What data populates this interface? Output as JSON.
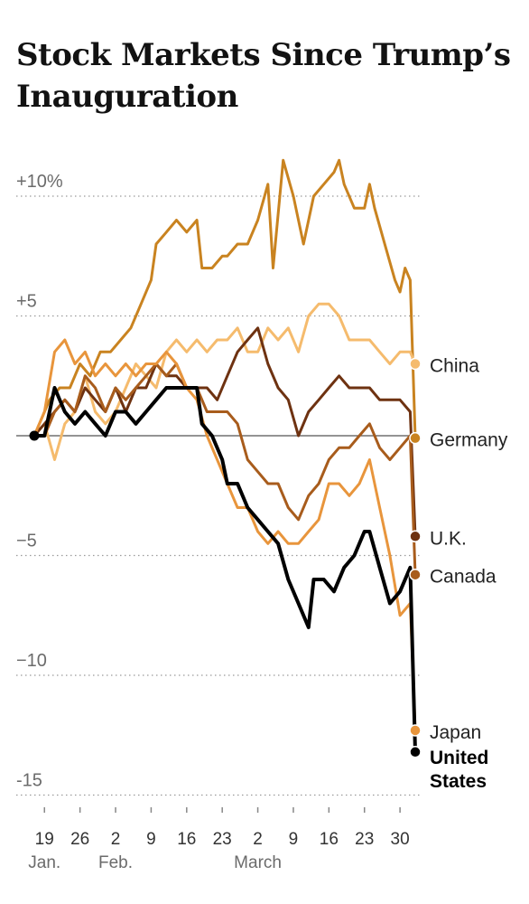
{
  "title": "Stock Markets Since Trump’s Inauguration",
  "chart_data": {
    "type": "line",
    "ylim": [
      -15.5,
      12
    ],
    "yticks": [
      {
        "value": 10,
        "label": "+10%"
      },
      {
        "value": 5,
        "label": "+5"
      },
      {
        "value": -5,
        "label": "−5"
      },
      {
        "value": -10,
        "label": "−10"
      },
      {
        "value": -15,
        "label": "-15"
      }
    ],
    "baseline": 0,
    "grid": "dotted horizontal",
    "x_start": "Jan. 17",
    "xticks": [
      {
        "day": 2,
        "label": "19"
      },
      {
        "day": 9,
        "label": "26"
      },
      {
        "day": 16,
        "label": "2"
      },
      {
        "day": 23,
        "label": "9"
      },
      {
        "day": 30,
        "label": "16"
      },
      {
        "day": 37,
        "label": "23"
      },
      {
        "day": 44,
        "label": "2"
      },
      {
        "day": 51,
        "label": "9"
      },
      {
        "day": 58,
        "label": "16"
      },
      {
        "day": 65,
        "label": "23"
      },
      {
        "day": 72,
        "label": "30"
      }
    ],
    "month_labels": [
      {
        "day": 2,
        "label": "Jan."
      },
      {
        "day": 16,
        "label": "Feb."
      },
      {
        "day": 44,
        "label": "March"
      }
    ],
    "x_domain": [
      -1,
      77
    ],
    "series": [
      {
        "name": "Germany",
        "color": "#c98320",
        "label_bold": false,
        "points": [
          [
            0,
            0
          ],
          [
            3,
            1.5
          ],
          [
            5,
            2
          ],
          [
            7,
            2
          ],
          [
            9,
            3
          ],
          [
            11,
            2.5
          ],
          [
            13,
            3.5
          ],
          [
            15,
            3.5
          ],
          [
            17,
            4
          ],
          [
            19,
            4.5
          ],
          [
            21,
            5.5
          ],
          [
            23,
            6.5
          ],
          [
            24,
            8
          ],
          [
            26,
            8.5
          ],
          [
            28,
            9
          ],
          [
            30,
            8.5
          ],
          [
            32,
            9
          ],
          [
            33,
            7
          ],
          [
            35,
            7
          ],
          [
            37,
            7.5
          ],
          [
            38,
            7.5
          ],
          [
            40,
            8
          ],
          [
            42,
            8
          ],
          [
            44,
            9
          ],
          [
            46,
            10.5
          ],
          [
            47,
            7
          ],
          [
            49,
            11.5
          ],
          [
            51,
            10
          ],
          [
            53,
            8
          ],
          [
            55,
            10
          ],
          [
            57,
            10.5
          ],
          [
            59,
            11
          ],
          [
            60,
            11.5
          ],
          [
            61,
            10.5
          ],
          [
            63,
            9.5
          ],
          [
            65,
            9.5
          ],
          [
            66,
            10.5
          ],
          [
            67,
            9.5
          ],
          [
            69,
            8
          ],
          [
            71,
            6.5
          ],
          [
            72,
            6
          ],
          [
            73,
            7
          ],
          [
            74,
            6.5
          ],
          [
            75,
            -0.1
          ]
        ]
      },
      {
        "name": "China",
        "color": "#f5bb6d",
        "label_bold": false,
        "points": [
          [
            0,
            0
          ],
          [
            2,
            0.5
          ],
          [
            4,
            -1
          ],
          [
            6,
            0.5
          ],
          [
            8,
            1
          ],
          [
            10,
            2.5
          ],
          [
            12,
            1
          ],
          [
            14,
            0.5
          ],
          [
            16,
            1
          ],
          [
            18,
            2
          ],
          [
            20,
            3
          ],
          [
            22,
            2.5
          ],
          [
            24,
            2
          ],
          [
            26,
            3.5
          ],
          [
            28,
            4
          ],
          [
            30,
            3.5
          ],
          [
            32,
            4
          ],
          [
            34,
            3.5
          ],
          [
            36,
            4
          ],
          [
            38,
            4
          ],
          [
            40,
            4.5
          ],
          [
            42,
            3.5
          ],
          [
            44,
            3.5
          ],
          [
            46,
            4.5
          ],
          [
            48,
            4
          ],
          [
            50,
            4.5
          ],
          [
            52,
            3.5
          ],
          [
            54,
            5
          ],
          [
            56,
            5.5
          ],
          [
            58,
            5.5
          ],
          [
            60,
            5
          ],
          [
            62,
            4
          ],
          [
            64,
            4
          ],
          [
            66,
            4
          ],
          [
            68,
            3.5
          ],
          [
            70,
            3
          ],
          [
            72,
            3.5
          ],
          [
            74,
            3.5
          ],
          [
            75,
            3
          ]
        ]
      },
      {
        "name": "U.K.",
        "color": "#6e3211",
        "label_bold": false,
        "points": [
          [
            0,
            0
          ],
          [
            2,
            0.5
          ],
          [
            4,
            1
          ],
          [
            6,
            1.5
          ],
          [
            8,
            1
          ],
          [
            10,
            2
          ],
          [
            12,
            1.5
          ],
          [
            14,
            1
          ],
          [
            16,
            2
          ],
          [
            18,
            1
          ],
          [
            20,
            2
          ],
          [
            22,
            2
          ],
          [
            24,
            3
          ],
          [
            26,
            2.5
          ],
          [
            28,
            2.5
          ],
          [
            30,
            2
          ],
          [
            32,
            2
          ],
          [
            34,
            2
          ],
          [
            36,
            1.5
          ],
          [
            38,
            2.5
          ],
          [
            40,
            3.5
          ],
          [
            42,
            4
          ],
          [
            44,
            4.5
          ],
          [
            46,
            3
          ],
          [
            48,
            2
          ],
          [
            50,
            1.5
          ],
          [
            52,
            0
          ],
          [
            54,
            1
          ],
          [
            56,
            1.5
          ],
          [
            58,
            2
          ],
          [
            60,
            2.5
          ],
          [
            62,
            2
          ],
          [
            64,
            2
          ],
          [
            66,
            2
          ],
          [
            68,
            1.5
          ],
          [
            70,
            1.5
          ],
          [
            72,
            1.5
          ],
          [
            74,
            1
          ],
          [
            75,
            -4.2
          ]
        ]
      },
      {
        "name": "Canada",
        "color": "#a85c1c",
        "label_bold": false,
        "points": [
          [
            0,
            0
          ],
          [
            2,
            0
          ],
          [
            4,
            1
          ],
          [
            6,
            1.5
          ],
          [
            8,
            1
          ],
          [
            10,
            2.5
          ],
          [
            12,
            2
          ],
          [
            14,
            1
          ],
          [
            16,
            2
          ],
          [
            18,
            1.5
          ],
          [
            20,
            2
          ],
          [
            22,
            2.5
          ],
          [
            24,
            3
          ],
          [
            26,
            2.5
          ],
          [
            28,
            3
          ],
          [
            30,
            2
          ],
          [
            32,
            2
          ],
          [
            34,
            1
          ],
          [
            36,
            1
          ],
          [
            38,
            1
          ],
          [
            40,
            0.5
          ],
          [
            42,
            -1
          ],
          [
            44,
            -1.5
          ],
          [
            46,
            -2
          ],
          [
            48,
            -2
          ],
          [
            50,
            -3
          ],
          [
            52,
            -3.5
          ],
          [
            54,
            -2.5
          ],
          [
            56,
            -2
          ],
          [
            58,
            -1
          ],
          [
            60,
            -0.5
          ],
          [
            62,
            -0.5
          ],
          [
            64,
            0
          ],
          [
            66,
            0.5
          ],
          [
            68,
            -0.5
          ],
          [
            70,
            -1
          ],
          [
            72,
            -0.5
          ],
          [
            74,
            0
          ],
          [
            75,
            -5.8
          ]
        ]
      },
      {
        "name": "Japan",
        "color": "#e8953c",
        "label_bold": false,
        "points": [
          [
            0,
            0
          ],
          [
            2,
            1
          ],
          [
            4,
            3.5
          ],
          [
            6,
            4
          ],
          [
            8,
            3
          ],
          [
            10,
            3.5
          ],
          [
            12,
            2.5
          ],
          [
            14,
            3
          ],
          [
            16,
            2.5
          ],
          [
            18,
            3
          ],
          [
            20,
            2.5
          ],
          [
            22,
            3
          ],
          [
            24,
            3
          ],
          [
            26,
            3.5
          ],
          [
            28,
            3
          ],
          [
            30,
            2
          ],
          [
            32,
            1.5
          ],
          [
            34,
            0
          ],
          [
            36,
            -1
          ],
          [
            38,
            -2
          ],
          [
            40,
            -3
          ],
          [
            42,
            -3
          ],
          [
            44,
            -4
          ],
          [
            46,
            -4.5
          ],
          [
            48,
            -4
          ],
          [
            50,
            -4.5
          ],
          [
            52,
            -4.5
          ],
          [
            54,
            -4
          ],
          [
            56,
            -3.5
          ],
          [
            58,
            -2
          ],
          [
            60,
            -2
          ],
          [
            62,
            -2.5
          ],
          [
            64,
            -2
          ],
          [
            66,
            -1
          ],
          [
            68,
            -3
          ],
          [
            70,
            -5
          ],
          [
            72,
            -7.5
          ],
          [
            74,
            -7
          ],
          [
            75,
            -12.3
          ]
        ]
      },
      {
        "name": "United States",
        "color": "#000000",
        "label_bold": true,
        "points": [
          [
            0,
            0
          ],
          [
            2,
            0
          ],
          [
            4,
            2
          ],
          [
            6,
            1
          ],
          [
            8,
            0.5
          ],
          [
            10,
            1
          ],
          [
            12,
            0.5
          ],
          [
            14,
            0
          ],
          [
            16,
            1
          ],
          [
            18,
            1
          ],
          [
            20,
            0.5
          ],
          [
            22,
            1
          ],
          [
            24,
            1.5
          ],
          [
            26,
            2
          ],
          [
            28,
            2
          ],
          [
            30,
            2
          ],
          [
            32,
            2
          ],
          [
            33,
            0.5
          ],
          [
            35,
            0
          ],
          [
            37,
            -1
          ],
          [
            38,
            -2
          ],
          [
            40,
            -2
          ],
          [
            42,
            -3
          ],
          [
            44,
            -3.5
          ],
          [
            46,
            -4
          ],
          [
            48,
            -4.5
          ],
          [
            50,
            -6
          ],
          [
            52,
            -7
          ],
          [
            54,
            -8
          ],
          [
            55,
            -6
          ],
          [
            57,
            -6
          ],
          [
            59,
            -6.5
          ],
          [
            61,
            -5.5
          ],
          [
            63,
            -5
          ],
          [
            65,
            -4
          ],
          [
            66,
            -4
          ],
          [
            68,
            -5.5
          ],
          [
            70,
            -7
          ],
          [
            72,
            -6.5
          ],
          [
            74,
            -5.5
          ],
          [
            75,
            -13.2
          ]
        ]
      }
    ]
  }
}
